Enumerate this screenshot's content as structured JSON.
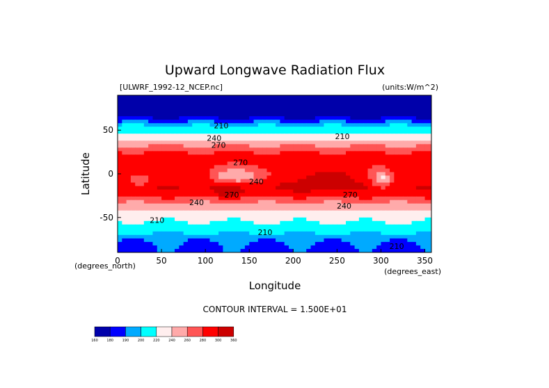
{
  "chart_data": {
    "type": "heatmap",
    "title": "Upward Longwave Radiation Flux",
    "file_label": "[ULWRF_1992-12_NCEP.nc]",
    "units_label": "(units:W/m^2)",
    "xlabel": "Longitude",
    "ylabel": "Latitude",
    "x_unit_label": "(degrees_east)",
    "y_unit_label": "(degrees_north)",
    "xlim": [
      0,
      357.5
    ],
    "ylim": [
      -90,
      90
    ],
    "x_ticks": [
      "0",
      "50",
      "100",
      "150",
      "200",
      "250",
      "300",
      "350"
    ],
    "y_ticks": [
      "50",
      "0",
      "-50"
    ],
    "contour_interval_text": "CONTOUR INTERVAL = 1.500E+01",
    "colorbar": {
      "levels": [
        "160",
        "180",
        "190",
        "200",
        "220",
        "240",
        "260",
        "280",
        "300",
        "360"
      ],
      "colors": [
        "#0000aa",
        "#0000ff",
        "#00aaff",
        "#00ffff",
        "#ffeeee",
        "#ffaaaa",
        "#ff5555",
        "#ff0000",
        "#cc0000"
      ]
    },
    "contour_labels": [
      {
        "text": "210",
        "lon": 118,
        "lat": 52
      },
      {
        "text": "240",
        "lon": 110,
        "lat": 38
      },
      {
        "text": "270",
        "lon": 115,
        "lat": 30
      },
      {
        "text": "210",
        "lon": 256,
        "lat": 40
      },
      {
        "text": "270",
        "lon": 140,
        "lat": 10
      },
      {
        "text": "240",
        "lon": 158,
        "lat": -12
      },
      {
        "text": "270",
        "lon": 130,
        "lat": -27
      },
      {
        "text": "240",
        "lon": 90,
        "lat": -36
      },
      {
        "text": "210",
        "lon": 45,
        "lat": -56
      },
      {
        "text": "270",
        "lon": 265,
        "lat": -27
      },
      {
        "text": "240",
        "lon": 258,
        "lat": -40
      },
      {
        "text": "210",
        "lon": 168,
        "lat": -70
      },
      {
        "text": "210",
        "lon": 318,
        "lat": -86
      }
    ]
  }
}
